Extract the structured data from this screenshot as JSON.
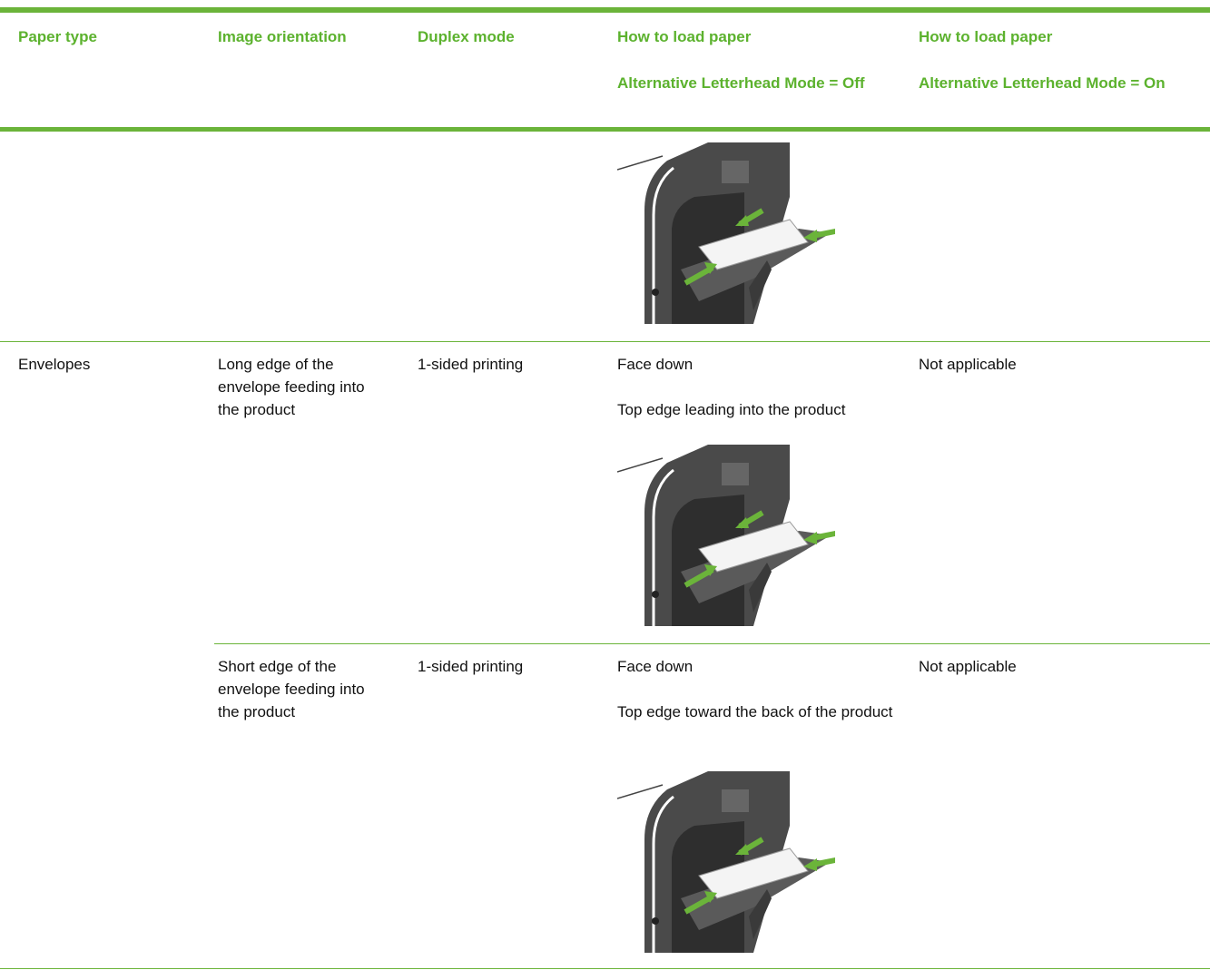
{
  "header": {
    "columns": [
      {
        "title": "Paper type"
      },
      {
        "title": "Image orientation"
      },
      {
        "title": "Duplex mode"
      },
      {
        "title": "How to load paper",
        "subtitle": "Alternative Letterhead Mode = Off"
      },
      {
        "title": "How to load paper",
        "subtitle": "Alternative Letterhead Mode = On"
      }
    ]
  },
  "rows": [
    {
      "paper_type": "Envelopes",
      "orientation": "Long edge of the envelope feeding into the product",
      "duplex": "1-sided printing",
      "load_off": [
        "Face down",
        "Top edge leading into the product"
      ],
      "load_on": "Not applicable"
    },
    {
      "orientation": "Short edge of the envelope feeding into the product",
      "duplex": "1-sided printing",
      "load_off": [
        "Face down",
        "Top edge toward the back of the product"
      ],
      "load_on": "Not applicable"
    }
  ]
}
